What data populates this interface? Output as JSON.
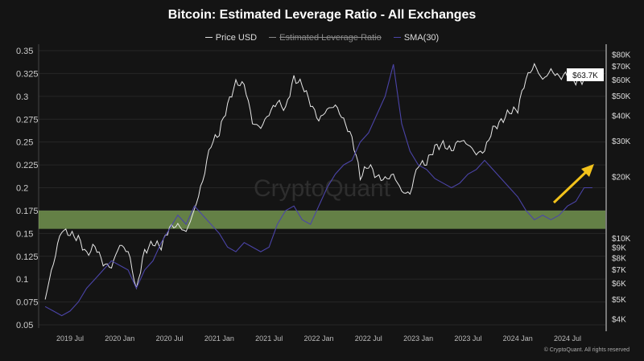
{
  "chart_data": {
    "type": "line",
    "title": "Bitcoin: Estimated Leverage Ratio - All Exchanges",
    "legend": [
      "Price USD",
      "Estimated Leverage Ratio",
      "SMA(30)"
    ],
    "legend_placement": "top-center",
    "start_month": "2019-04",
    "x_ticks": [
      "2019 Jul",
      "2020 Jan",
      "2020 Jul",
      "2021 Jan",
      "2021 Jul",
      "2022 Jan",
      "2022 Jul",
      "2023 Jan",
      "2023 Jul",
      "2024 Jan",
      "2024 Jul"
    ],
    "y_left_ticks": [
      "0.35",
      "0.325",
      "0.3",
      "0.275",
      "0.25",
      "0.225",
      "0.2",
      "0.175",
      "0.15",
      "0.125",
      "0.1",
      "0.075",
      "0.05"
    ],
    "y_left_range": [
      0.05,
      0.35
    ],
    "y_right_ticks": [
      {
        "label": "$80K",
        "value": 80000
      },
      {
        "label": "$70K",
        "value": 70000
      },
      {
        "label": "$60K",
        "value": 60000
      },
      {
        "label": "$50K",
        "value": 50000
      },
      {
        "label": "$40K",
        "value": 40000
      },
      {
        "label": "$30K",
        "value": 30000
      },
      {
        "label": "$20K",
        "value": 20000
      },
      {
        "label": "$10K",
        "value": 10000
      },
      {
        "label": "$9K",
        "value": 9000
      },
      {
        "label": "$8K",
        "value": 8000
      },
      {
        "label": "$7K",
        "value": 7000
      },
      {
        "label": "$6K",
        "value": 6000
      },
      {
        "label": "$5K",
        "value": 5000
      },
      {
        "label": "$4K",
        "value": 4000
      }
    ],
    "y_right_scale": "log",
    "y_right_range": [
      4000,
      80000
    ],
    "current_price_label": "$63.7K",
    "highlight_band": [
      0.155,
      0.175
    ],
    "series": [
      {
        "name": "Price USD",
        "axis": "right",
        "color": "#e8e8e8",
        "values": [
          5000,
          7500,
          11000,
          10500,
          10000,
          8300,
          9200,
          7500,
          7200,
          9300,
          8600,
          5500,
          8600,
          9500,
          9100,
          11300,
          11600,
          10700,
          13700,
          19000,
          29000,
          33000,
          45000,
          58000,
          57000,
          37000,
          35000,
          41000,
          47000,
          43000,
          61000,
          57000,
          46000,
          38000,
          43000,
          45000,
          38000,
          31000,
          20000,
          23000,
          20000,
          19500,
          20500,
          17000,
          16500,
          23000,
          23500,
          28000,
          29000,
          27000,
          30500,
          29000,
          26000,
          27000,
          34500,
          37500,
          42000,
          43000,
          61000,
          71000,
          60000,
          67000,
          62000,
          64000,
          59000,
          60000,
          63700
        ]
      },
      {
        "name": "Estimated Leverage Ratio",
        "axis": "left",
        "color": "#4b44a8",
        "values": [
          0.07,
          0.065,
          0.06,
          0.065,
          0.075,
          0.09,
          0.1,
          0.11,
          0.12,
          0.115,
          0.11,
          0.09,
          0.11,
          0.12,
          0.14,
          0.155,
          0.17,
          0.16,
          0.18,
          0.17,
          0.16,
          0.15,
          0.135,
          0.13,
          0.14,
          0.135,
          0.13,
          0.135,
          0.16,
          0.175,
          0.18,
          0.165,
          0.16,
          0.18,
          0.2,
          0.215,
          0.225,
          0.23,
          0.25,
          0.26,
          0.28,
          0.3,
          0.335,
          0.27,
          0.24,
          0.225,
          0.22,
          0.21,
          0.205,
          0.2,
          0.205,
          0.215,
          0.22,
          0.23,
          0.22,
          0.21,
          0.2,
          0.19,
          0.175,
          0.165,
          0.17,
          0.165,
          0.17,
          0.18,
          0.185,
          0.2,
          0.2
        ]
      }
    ],
    "watermark": "CryptoQuant",
    "annotation": "yellow up-trend arrow"
  },
  "footer": "© CryptoQuant. All rights reserved"
}
